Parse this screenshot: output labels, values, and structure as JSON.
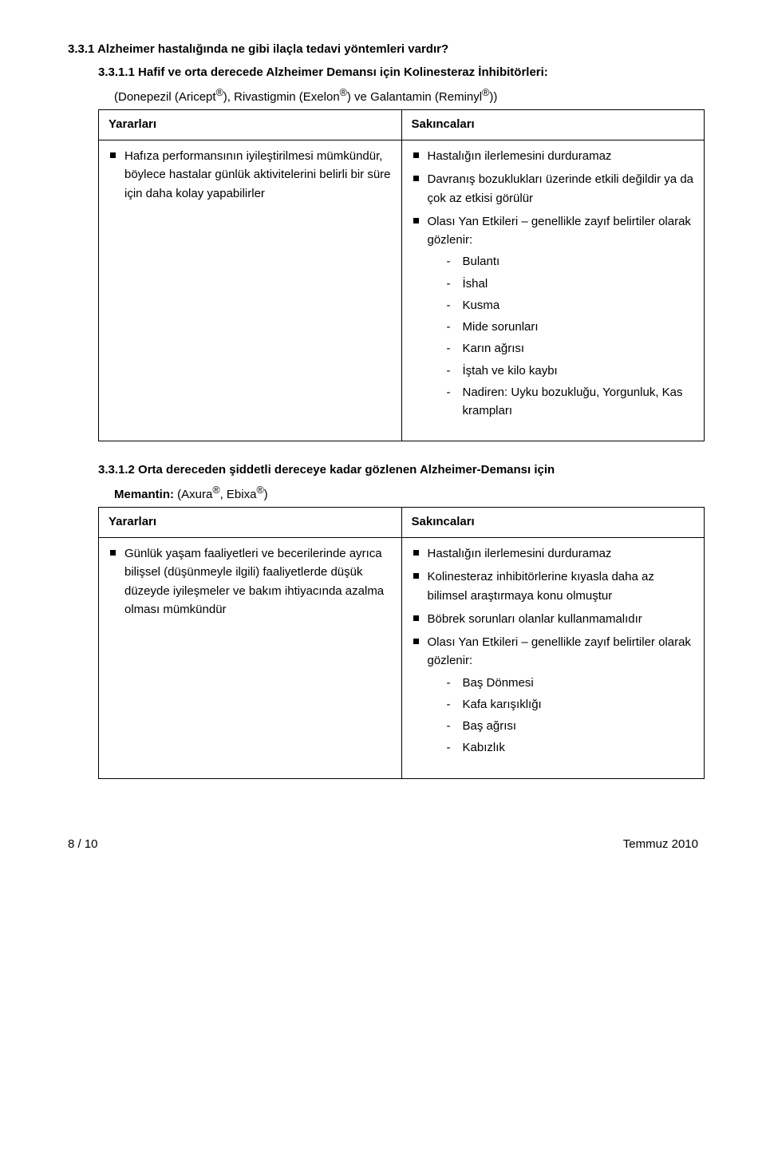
{
  "section": {
    "number_title": "3.3.1  Alzheimer hastalığında ne gibi ilaçla tedavi yöntemleri vardır?"
  },
  "sub1": {
    "heading": "3.3.1.1 Hafif ve orta derecede Alzheimer Demansı için Kolinesteraz İnhibitörleri:",
    "line2_pre": "(Donepezil (Aricept",
    "line2_mid1": "), Rivastigmin (Exelon",
    "line2_mid2": ") ve Galantamin (Reminyl",
    "line2_end": "))",
    "reg": "®",
    "col_left": "Yararları",
    "col_right": "Sakıncaları",
    "benefit": "Hafıza performansının iyileştirilmesi mümkündür, böylece hastalar günlük aktivitelerini belirli bir süre için daha kolay yapabilirler",
    "risk1": "Hastalığın ilerlemesini durduramaz",
    "risk2": "Davranış bozuklukları üzerinde etkili değildir ya da çok az etkisi görülür",
    "risk3": "Olası Yan Etkileri – genellikle zayıf belirtiler olarak gözlenir:",
    "d1": "Bulantı",
    "d2": "İshal",
    "d3": "Kusma",
    "d4": "Mide sorunları",
    "d5": "Karın ağrısı",
    "d6": "İştah ve kilo kaybı",
    "d7": "Nadiren: Uyku bozukluğu, Yorgunluk, Kas krampları"
  },
  "sub2": {
    "heading": "3.3.1.2 Orta dereceden şiddetli dereceye kadar gözlenen Alzheimer-Demansı için",
    "line2_pre": "Memantin: ",
    "line2_par1": "(Axura",
    "line2_mid": ", Ebixa",
    "line2_end": ")",
    "reg": "®",
    "col_left": "Yararları",
    "col_right": "Sakıncaları",
    "benefit": "Günlük yaşam faaliyetleri ve becerilerinde ayrıca bilişsel (düşünmeyle ilgili) faaliyetlerde düşük düzeyde iyileşmeler ve bakım ihtiyacında azalma olması mümkündür",
    "risk1": "Hastalığın ilerlemesini durduramaz",
    "risk2": "Kolinesteraz inhibitörlerine kıyasla daha az bilimsel araştırmaya konu olmuştur",
    "risk3": "Böbrek sorunları olanlar kullanmamalıdır",
    "risk4": "Olası Yan Etkileri – genellikle zayıf belirtiler olarak gözlenir:",
    "d1": "Baş Dönmesi",
    "d2": "Kafa karışıklığı",
    "d3": "Baş ağrısı",
    "d4": "Kabızlık"
  },
  "footer": {
    "left": "8 / 10",
    "right": "Temmuz  2010"
  }
}
